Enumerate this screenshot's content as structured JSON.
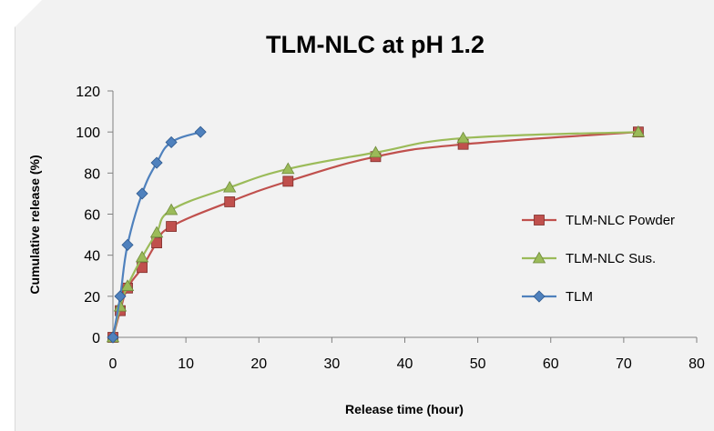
{
  "chart_data": {
    "type": "line",
    "title": "TLM-NLC at pH 1.2",
    "xlabel": "Release time (hour)",
    "ylabel": "Cumulative release (%)",
    "xlim": [
      0,
      80
    ],
    "ylim": [
      0,
      120
    ],
    "xticks": [
      "0",
      "10",
      "20",
      "30",
      "40",
      "50",
      "60",
      "70",
      "80"
    ],
    "yticks": [
      "0",
      "20",
      "40",
      "60",
      "80",
      "100",
      "120"
    ],
    "grid": false,
    "legend_position": "right",
    "series": [
      {
        "name": "TLM-NLC Powder",
        "color": "#c0504d",
        "marker": "square",
        "x": [
          0,
          1,
          2,
          4,
          6,
          8,
          16,
          24,
          36,
          48,
          72
        ],
        "y": [
          0,
          13,
          24,
          34,
          46,
          54,
          66,
          76,
          88,
          94,
          100
        ]
      },
      {
        "name": "TLM-NLC Sus.",
        "color": "#9bbb59",
        "marker": "triangle",
        "x": [
          0,
          1,
          2,
          4,
          6,
          8,
          16,
          24,
          36,
          48,
          72
        ],
        "y": [
          0,
          15,
          25,
          39,
          51,
          62,
          73,
          82,
          90,
          97,
          100
        ]
      },
      {
        "name": "TLM",
        "color": "#4f81bd",
        "marker": "diamond",
        "x": [
          0,
          1,
          2,
          4,
          6,
          8,
          12
        ],
        "y": [
          0,
          20,
          45,
          70,
          85,
          95,
          100
        ]
      }
    ]
  }
}
